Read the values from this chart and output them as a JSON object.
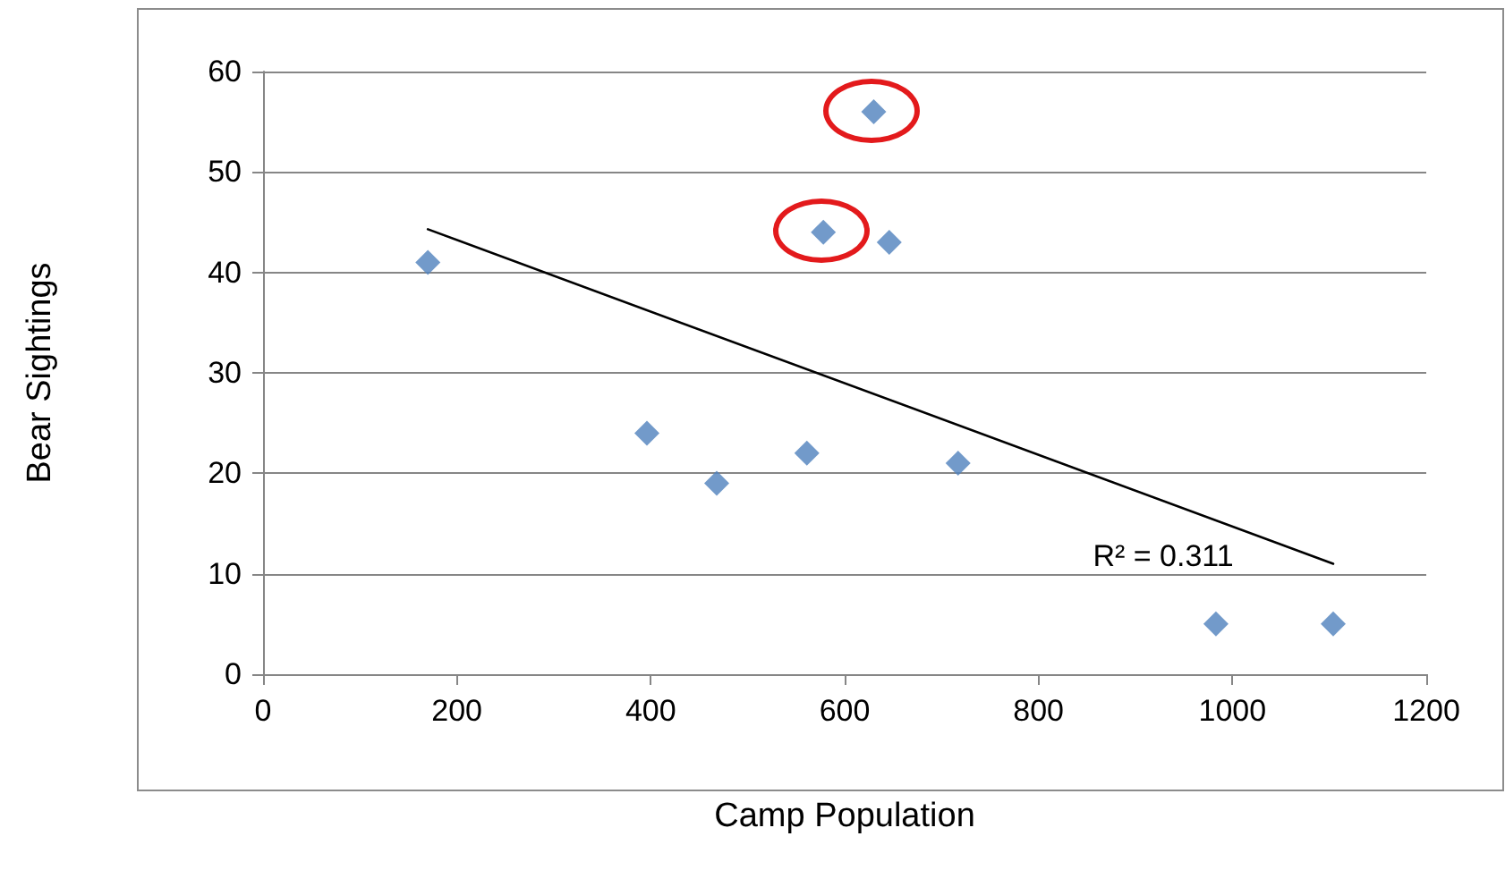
{
  "chart_data": {
    "type": "scatter",
    "xlabel": "Camp Population",
    "ylabel": "Bear Sightings",
    "xlim": [
      0,
      1200
    ],
    "ylim": [
      0,
      60
    ],
    "xticks": [
      0,
      200,
      400,
      600,
      800,
      1000,
      1200
    ],
    "yticks": [
      0,
      10,
      20,
      30,
      40,
      50,
      60
    ],
    "grid": "y",
    "annotations": [
      "R² = 0.311"
    ],
    "series": [
      {
        "type": "scatter",
        "marker": "diamond",
        "color": "#4f81bd",
        "x": [
          170,
          396,
          468,
          561,
          578,
          630,
          646,
          717,
          983,
          1104
        ],
        "values": [
          41,
          24,
          19,
          22,
          44,
          56,
          43,
          21,
          5,
          5
        ]
      },
      {
        "type": "line",
        "marker": "none",
        "color": "#000000",
        "x": [
          170,
          1104
        ],
        "values": [
          44.3,
          11
        ]
      }
    ]
  }
}
